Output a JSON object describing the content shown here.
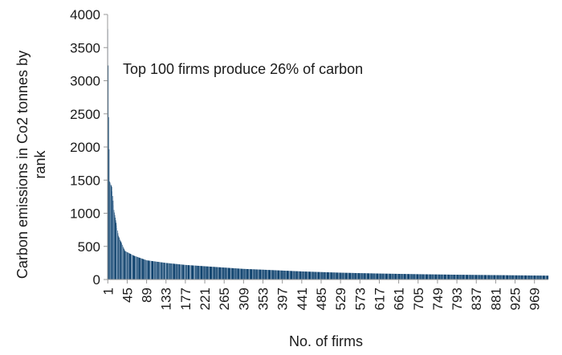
{
  "chart_data": {
    "type": "bar",
    "title": "",
    "annotation": "Top 100 firms produce 26% of carbon",
    "xlabel": "No. of firms",
    "ylabel_lines": [
      "Carbon emissions in Co2 tonnes by",
      "rank"
    ],
    "ylim": [
      0,
      4000
    ],
    "yticks": [
      0,
      500,
      1000,
      1500,
      2000,
      2500,
      3000,
      3500,
      4000
    ],
    "xlim": [
      1,
      1000
    ],
    "xticks": [
      1,
      45,
      89,
      133,
      177,
      221,
      265,
      309,
      353,
      397,
      441,
      485,
      529,
      573,
      617,
      661,
      705,
      749,
      793,
      837,
      881,
      925,
      969
    ],
    "n_firms": 1000,
    "grid": false,
    "colors": {
      "bar": "#0b3f6b",
      "bar_stripe": "#9fb8d2",
      "axis": "#999999"
    },
    "series": [
      {
        "rank": [
          1,
          2,
          3,
          5,
          10,
          15,
          25,
          40,
          60,
          89,
          133,
          177,
          221,
          265,
          309,
          353,
          397,
          441,
          485,
          529,
          573,
          617,
          661,
          705,
          749,
          793,
          837,
          881,
          925,
          969,
          1000
        ],
        "values": [
          3780,
          3230,
          2450,
          1480,
          1400,
          1050,
          660,
          430,
          360,
          290,
          250,
          220,
          200,
          180,
          160,
          148,
          135,
          122,
          112,
          103,
          96,
          90,
          85,
          80,
          76,
          72,
          69,
          66,
          63,
          60,
          58
        ]
      }
    ]
  }
}
